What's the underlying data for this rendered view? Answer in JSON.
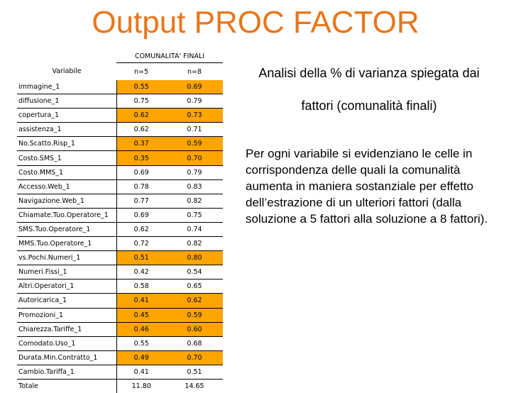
{
  "title": "Output PROC FACTOR",
  "table": {
    "group_header": "COMUNALITA' FINALI",
    "col_variable": "Variabile",
    "col_n5": "n=5",
    "col_n8": "n=8",
    "highlight_color": "#ffa500",
    "rows": [
      {
        "name": "immagine_1",
        "n5": "0.55",
        "n8": "0.69",
        "hl": true
      },
      {
        "name": "diffusione_1",
        "n5": "0.75",
        "n8": "0.79",
        "hl": false
      },
      {
        "name": "copertura_1",
        "n5": "0.62",
        "n8": "0.73",
        "hl": true
      },
      {
        "name": "assistenza_1",
        "n5": "0.62",
        "n8": "0.71",
        "hl": false
      },
      {
        "name": "No.Scatto.Risp_1",
        "n5": "0.37",
        "n8": "0.59",
        "hl": true
      },
      {
        "name": "Costo.SMS_1",
        "n5": "0.35",
        "n8": "0.70",
        "hl": true
      },
      {
        "name": "Costo.MMS_1",
        "n5": "0.69",
        "n8": "0.79",
        "hl": false
      },
      {
        "name": "Accesso.Web_1",
        "n5": "0.78",
        "n8": "0.83",
        "hl": false
      },
      {
        "name": "Navigazione.Web_1",
        "n5": "0.77",
        "n8": "0.82",
        "hl": false
      },
      {
        "name": "Chiamate.Tuo.Operatore_1",
        "n5": "0.69",
        "n8": "0.75",
        "hl": false
      },
      {
        "name": "SMS.Tuo.Operatore_1",
        "n5": "0.62",
        "n8": "0.74",
        "hl": false
      },
      {
        "name": "MMS.Tuo.Operatore_1",
        "n5": "0.72",
        "n8": "0.82",
        "hl": false
      },
      {
        "name": "vs.Pochi.Numeri_1",
        "n5": "0.51",
        "n8": "0.80",
        "hl": true
      },
      {
        "name": "Numeri.Fissi_1",
        "n5": "0.42",
        "n8": "0.54",
        "hl": false
      },
      {
        "name": "Altri.Operatori_1",
        "n5": "0.58",
        "n8": "0.65",
        "hl": false
      },
      {
        "name": "Autoricarica_1",
        "n5": "0.41",
        "n8": "0.62",
        "hl": true
      },
      {
        "name": "Promozioni_1",
        "n5": "0.45",
        "n8": "0.59",
        "hl": true
      },
      {
        "name": "Chiarezza.Tariffe_1",
        "n5": "0.46",
        "n8": "0.60",
        "hl": true
      },
      {
        "name": "Comodato.Uso_1",
        "n5": "0.55",
        "n8": "0.68",
        "hl": false
      },
      {
        "name": "Durata.Min.Contratto_1",
        "n5": "0.49",
        "n8": "0.70",
        "hl": true
      },
      {
        "name": "Cambio.Tariffa_1",
        "n5": "0.41",
        "n8": "0.51",
        "hl": false
      }
    ],
    "total": {
      "name": "Totale",
      "n5": "11.80",
      "n8": "14.65"
    }
  },
  "caption_top": "Analisi della % di varianza spiegata dai fattori (comunalità finali)",
  "caption_body": "Per ogni variabile si evidenziano le celle in corrispondenza delle quali la comunalità aumenta in maniera sostanziale per effetto dell’estrazione di un ulteriori fattori (dalla soluzione a 5 fattori alla soluzione a 8 fattori)."
}
